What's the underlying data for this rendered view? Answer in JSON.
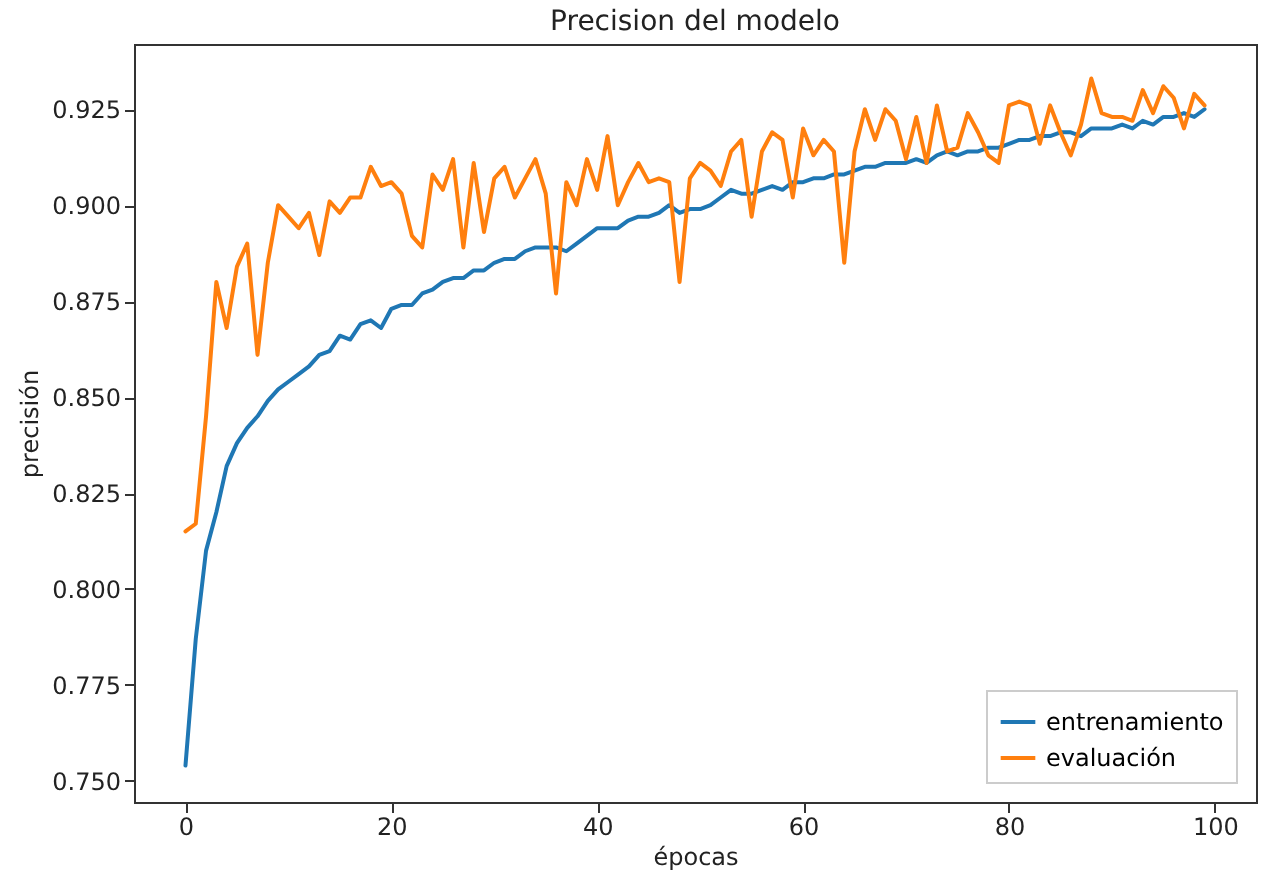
{
  "chart_data": {
    "type": "line",
    "title": "Precision del modelo",
    "xlabel": "épocas",
    "ylabel": "precisión",
    "x": [
      0,
      1,
      2,
      3,
      4,
      5,
      6,
      7,
      8,
      9,
      10,
      11,
      12,
      13,
      14,
      15,
      16,
      17,
      18,
      19,
      20,
      21,
      22,
      23,
      24,
      25,
      26,
      27,
      28,
      29,
      30,
      31,
      32,
      33,
      34,
      35,
      36,
      37,
      38,
      39,
      40,
      41,
      42,
      43,
      44,
      45,
      46,
      47,
      48,
      49,
      50,
      51,
      52,
      53,
      54,
      55,
      56,
      57,
      58,
      59,
      60,
      61,
      62,
      63,
      64,
      65,
      66,
      67,
      68,
      69,
      70,
      71,
      72,
      73,
      74,
      75,
      76,
      77,
      78,
      79,
      80,
      81,
      82,
      83,
      84,
      85,
      86,
      87,
      88,
      89,
      90,
      91,
      92,
      93,
      94,
      95,
      96,
      97,
      98,
      99
    ],
    "series": [
      {
        "name": "entrenamiento",
        "color": "#1f77b4",
        "values": [
          0.754,
          0.787,
          0.81,
          0.82,
          0.832,
          0.838,
          0.842,
          0.845,
          0.849,
          0.852,
          0.854,
          0.856,
          0.858,
          0.861,
          0.862,
          0.866,
          0.865,
          0.869,
          0.87,
          0.868,
          0.873,
          0.874,
          0.874,
          0.877,
          0.878,
          0.88,
          0.881,
          0.881,
          0.883,
          0.883,
          0.885,
          0.886,
          0.886,
          0.888,
          0.889,
          0.889,
          0.889,
          0.888,
          0.89,
          0.892,
          0.894,
          0.894,
          0.894,
          0.896,
          0.897,
          0.897,
          0.898,
          0.9,
          0.898,
          0.899,
          0.899,
          0.9,
          0.902,
          0.904,
          0.903,
          0.903,
          0.904,
          0.905,
          0.904,
          0.906,
          0.906,
          0.907,
          0.907,
          0.908,
          0.908,
          0.909,
          0.91,
          0.91,
          0.911,
          0.911,
          0.911,
          0.912,
          0.911,
          0.913,
          0.914,
          0.913,
          0.914,
          0.914,
          0.915,
          0.915,
          0.916,
          0.917,
          0.917,
          0.918,
          0.918,
          0.919,
          0.919,
          0.918,
          0.92,
          0.92,
          0.92,
          0.921,
          0.92,
          0.922,
          0.921,
          0.923,
          0.923,
          0.924,
          0.923,
          0.925
        ]
      },
      {
        "name": "evaluación",
        "color": "#ff7f0e",
        "values": [
          0.815,
          0.817,
          0.845,
          0.88,
          0.868,
          0.884,
          0.89,
          0.861,
          0.885,
          0.9,
          0.897,
          0.894,
          0.898,
          0.887,
          0.901,
          0.898,
          0.902,
          0.902,
          0.91,
          0.905,
          0.906,
          0.903,
          0.892,
          0.889,
          0.908,
          0.904,
          0.912,
          0.889,
          0.911,
          0.893,
          0.907,
          0.91,
          0.902,
          0.907,
          0.912,
          0.903,
          0.877,
          0.906,
          0.9,
          0.912,
          0.904,
          0.918,
          0.9,
          0.906,
          0.911,
          0.906,
          0.907,
          0.906,
          0.88,
          0.907,
          0.911,
          0.909,
          0.905,
          0.914,
          0.917,
          0.897,
          0.914,
          0.919,
          0.917,
          0.902,
          0.92,
          0.913,
          0.917,
          0.914,
          0.885,
          0.914,
          0.925,
          0.917,
          0.925,
          0.922,
          0.912,
          0.923,
          0.911,
          0.926,
          0.914,
          0.915,
          0.924,
          0.919,
          0.913,
          0.911,
          0.926,
          0.927,
          0.926,
          0.916,
          0.926,
          0.919,
          0.913,
          0.921,
          0.933,
          0.924,
          0.923,
          0.923,
          0.922,
          0.93,
          0.924,
          0.931,
          0.928,
          0.92,
          0.929,
          0.926
        ]
      }
    ],
    "xlim": [
      -5,
      104
    ],
    "xticks": [
      0,
      20,
      40,
      60,
      80,
      100
    ],
    "ylim": [
      0.7445,
      0.942
    ],
    "yticks": [
      {
        "value": 0.75,
        "label": "0.750"
      },
      {
        "value": 0.775,
        "label": "0.775"
      },
      {
        "value": 0.8,
        "label": "0.800"
      },
      {
        "value": 0.825,
        "label": "0.825"
      },
      {
        "value": 0.85,
        "label": "0.850"
      },
      {
        "value": 0.875,
        "label": "0.875"
      },
      {
        "value": 0.9,
        "label": "0.900"
      },
      {
        "value": 0.925,
        "label": "0.925"
      }
    ],
    "grid": false,
    "legend": "bottom right",
    "line_style": "solid"
  }
}
